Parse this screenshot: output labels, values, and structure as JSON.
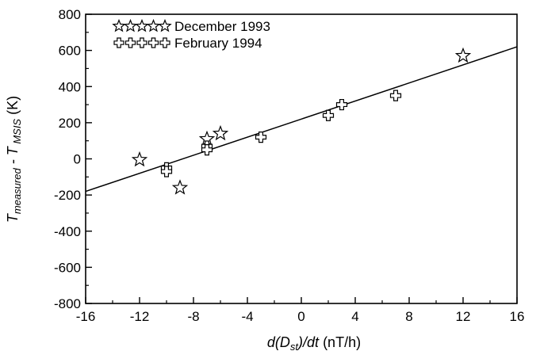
{
  "chart_data": {
    "type": "scatter",
    "title": "",
    "xlabel": {
      "prefix": "d(D",
      "sub": "st",
      "suffix": ")/dt",
      "unit": " (nT/h)"
    },
    "ylabel": {
      "t1": "T",
      "s1": "measured",
      "mid": " - T",
      "s2": " MSIS",
      "unit": " (K)"
    },
    "xlim": [
      -16,
      16
    ],
    "ylim": [
      -800,
      800
    ],
    "xticks": [
      -16,
      -12,
      -8,
      -4,
      0,
      4,
      8,
      12,
      16
    ],
    "yticks": [
      -800,
      -600,
      -400,
      -200,
      0,
      200,
      400,
      600,
      800
    ],
    "grid": false,
    "legend_position": "top-left",
    "series": [
      {
        "name": "December 1993",
        "marker": "star",
        "points": [
          {
            "x": -12,
            "y": -5
          },
          {
            "x": -9,
            "y": -160
          },
          {
            "x": -7,
            "y": 110
          },
          {
            "x": -6,
            "y": 140
          },
          {
            "x": 12,
            "y": 570
          }
        ]
      },
      {
        "name": "February 1994",
        "marker": "plus",
        "points": [
          {
            "x": -10,
            "y": -50
          },
          {
            "x": -10,
            "y": -70
          },
          {
            "x": -7,
            "y": 70
          },
          {
            "x": -7,
            "y": 50
          },
          {
            "x": -3,
            "y": 120
          },
          {
            "x": 2,
            "y": 240
          },
          {
            "x": 3,
            "y": 300
          },
          {
            "x": 7,
            "y": 350
          }
        ]
      }
    ],
    "fit_line": {
      "x": [
        -16,
        16
      ],
      "y": [
        -180,
        620
      ]
    },
    "legend_glyph_count": 5
  }
}
